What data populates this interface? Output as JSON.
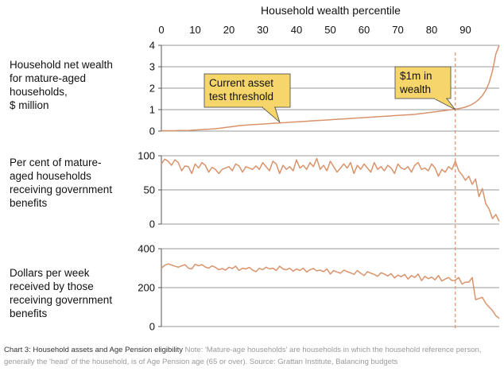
{
  "colors": {
    "line": "#d9936b",
    "grid": "#9a9a9a",
    "axis": "#555555",
    "callout_fill": "#f6d66a",
    "callout_border": "#555555",
    "threshold": "#d9936b"
  },
  "figure": {
    "top_axis_title": "Household wealth percentile",
    "x_ticks": [
      "0",
      "10",
      "20",
      "30",
      "40",
      "50",
      "60",
      "70",
      "80",
      "90"
    ],
    "panel_labels": [
      "Household net wealth\nfor mature-aged\nhouseholds,\n$ million",
      "Per cent of mature-\naged households\nreceiving government\nbenefits",
      "Dollars per week\nreceived by those\nreceiving government\nbenefits"
    ],
    "callouts": [
      "Current asset\ntest threshold",
      "$1m in\nwealth"
    ]
  },
  "caption": {
    "title": "Chart 3: Household assets and Age Pension eligibility",
    "note": " Note: 'Mature-age households' are households in which the household reference person, generally the 'head' of the household, is of Age Pension age (65 or over). Source: Grattan Institute, Balancing budgets"
  },
  "chart_data": [
    {
      "type": "line",
      "title": "Household net wealth for mature-aged households, $ million",
      "xlabel": "Household wealth percentile",
      "ylabel": "$ million",
      "xlim": [
        0,
        100
      ],
      "ylim": [
        0,
        4
      ],
      "y_ticks": [
        "0",
        "1",
        "2",
        "3",
        "4"
      ],
      "threshold_percentile": 87,
      "annotations": [
        {
          "text": "Current asset test threshold",
          "x": 35,
          "y": 0.42
        },
        {
          "text": "$1m in wealth",
          "x": 87,
          "y": 1.0
        }
      ],
      "x": [
        0,
        1,
        2,
        3,
        4,
        5,
        6,
        7,
        8,
        9,
        10,
        11,
        12,
        13,
        14,
        15,
        16,
        17,
        18,
        19,
        20,
        21,
        22,
        23,
        24,
        25,
        26,
        27,
        28,
        29,
        30,
        31,
        32,
        33,
        34,
        35,
        36,
        37,
        38,
        39,
        40,
        41,
        42,
        43,
        44,
        45,
        46,
        47,
        48,
        49,
        50,
        51,
        52,
        53,
        54,
        55,
        56,
        57,
        58,
        59,
        60,
        61,
        62,
        63,
        64,
        65,
        66,
        67,
        68,
        69,
        70,
        71,
        72,
        73,
        74,
        75,
        76,
        77,
        78,
        79,
        80,
        81,
        82,
        83,
        84,
        85,
        86,
        87,
        88,
        89,
        90,
        91,
        92,
        93,
        94,
        95,
        96,
        97,
        98,
        99,
        100
      ],
      "values": [
        0.02,
        0.02,
        0.02,
        0.02,
        0.02,
        0.03,
        0.03,
        0.03,
        0.03,
        0.04,
        0.05,
        0.06,
        0.07,
        0.08,
        0.09,
        0.1,
        0.11,
        0.13,
        0.15,
        0.17,
        0.19,
        0.21,
        0.23,
        0.25,
        0.27,
        0.28,
        0.29,
        0.3,
        0.31,
        0.32,
        0.33,
        0.34,
        0.35,
        0.36,
        0.37,
        0.38,
        0.39,
        0.4,
        0.41,
        0.42,
        0.43,
        0.44,
        0.45,
        0.46,
        0.47,
        0.48,
        0.49,
        0.5,
        0.51,
        0.52,
        0.53,
        0.54,
        0.55,
        0.56,
        0.57,
        0.58,
        0.59,
        0.6,
        0.61,
        0.62,
        0.63,
        0.64,
        0.65,
        0.66,
        0.67,
        0.68,
        0.69,
        0.7,
        0.71,
        0.72,
        0.73,
        0.74,
        0.75,
        0.76,
        0.77,
        0.78,
        0.8,
        0.82,
        0.84,
        0.86,
        0.88,
        0.9,
        0.92,
        0.94,
        0.96,
        0.98,
        1.0,
        1.02,
        1.05,
        1.08,
        1.12,
        1.18,
        1.25,
        1.35,
        1.48,
        1.65,
        1.9,
        2.25,
        2.8,
        3.6,
        4.0
      ]
    },
    {
      "type": "line",
      "title": "Per cent of mature-aged households receiving government benefits",
      "xlabel": "Household wealth percentile",
      "ylabel": "Per cent",
      "xlim": [
        0,
        100
      ],
      "ylim": [
        0,
        100
      ],
      "y_ticks": [
        "0",
        "50",
        "100"
      ],
      "x": [
        0,
        1,
        2,
        3,
        4,
        5,
        6,
        7,
        8,
        9,
        10,
        11,
        12,
        13,
        14,
        15,
        16,
        17,
        18,
        19,
        20,
        21,
        22,
        23,
        24,
        25,
        26,
        27,
        28,
        29,
        30,
        31,
        32,
        33,
        34,
        35,
        36,
        37,
        38,
        39,
        40,
        41,
        42,
        43,
        44,
        45,
        46,
        47,
        48,
        49,
        50,
        51,
        52,
        53,
        54,
        55,
        56,
        57,
        58,
        59,
        60,
        61,
        62,
        63,
        64,
        65,
        66,
        67,
        68,
        69,
        70,
        71,
        72,
        73,
        74,
        75,
        76,
        77,
        78,
        79,
        80,
        81,
        82,
        83,
        84,
        85,
        86,
        87,
        88,
        89,
        90,
        91,
        92,
        93,
        94,
        95,
        96,
        97,
        98,
        99,
        100
      ],
      "values": [
        88,
        95,
        92,
        86,
        94,
        90,
        78,
        85,
        84,
        74,
        88,
        82,
        90,
        86,
        76,
        83,
        80,
        74,
        80,
        82,
        84,
        78,
        88,
        85,
        76,
        84,
        82,
        80,
        85,
        80,
        90,
        84,
        78,
        92,
        88,
        74,
        86,
        80,
        84,
        78,
        94,
        82,
        86,
        80,
        90,
        84,
        96,
        80,
        86,
        78,
        92,
        84,
        76,
        82,
        88,
        82,
        90,
        74,
        86,
        80,
        88,
        82,
        76,
        90,
        80,
        84,
        78,
        86,
        82,
        74,
        88,
        82,
        80,
        84,
        76,
        86,
        90,
        80,
        82,
        78,
        88,
        82,
        70,
        80,
        76,
        84,
        80,
        92,
        78,
        72,
        64,
        70,
        58,
        66,
        40,
        52,
        30,
        22,
        8,
        14,
        4
      ]
    },
    {
      "type": "line",
      "title": "Dollars per week received by those receiving government benefits",
      "xlabel": "Household wealth percentile",
      "ylabel": "Dollars per week",
      "xlim": [
        0,
        100
      ],
      "ylim": [
        0,
        400
      ],
      "y_ticks": [
        "0",
        "200",
        "400"
      ],
      "x": [
        0,
        1,
        2,
        3,
        4,
        5,
        6,
        7,
        8,
        9,
        10,
        11,
        12,
        13,
        14,
        15,
        16,
        17,
        18,
        19,
        20,
        21,
        22,
        23,
        24,
        25,
        26,
        27,
        28,
        29,
        30,
        31,
        32,
        33,
        34,
        35,
        36,
        37,
        38,
        39,
        40,
        41,
        42,
        43,
        44,
        45,
        46,
        47,
        48,
        49,
        50,
        51,
        52,
        53,
        54,
        55,
        56,
        57,
        58,
        59,
        60,
        61,
        62,
        63,
        64,
        65,
        66,
        67,
        68,
        69,
        70,
        71,
        72,
        73,
        74,
        75,
        76,
        77,
        78,
        79,
        80,
        81,
        82,
        83,
        84,
        85,
        86,
        87,
        88,
        89,
        90,
        91,
        92,
        93,
        94,
        95,
        96,
        97,
        98,
        99,
        100
      ],
      "values": [
        300,
        315,
        322,
        316,
        310,
        305,
        312,
        318,
        300,
        296,
        320,
        312,
        318,
        306,
        300,
        312,
        304,
        292,
        298,
        290,
        305,
        298,
        310,
        288,
        300,
        296,
        304,
        290,
        282,
        300,
        292,
        305,
        296,
        300,
        288,
        310,
        296,
        292,
        300,
        284,
        296,
        288,
        300,
        280,
        292,
        298,
        286,
        290,
        282,
        296,
        270,
        288,
        280,
        274,
        290,
        282,
        276,
        268,
        288,
        274,
        262,
        282,
        274,
        268,
        258,
        276,
        270,
        260,
        272,
        250,
        264,
        256,
        268,
        244,
        262,
        252,
        270,
        236,
        258,
        246,
        254,
        240,
        262,
        234,
        244,
        252,
        236,
        238,
        252,
        218,
        228,
        228,
        252,
        138,
        144,
        150,
        120,
        100,
        82,
        56,
        42
      ]
    }
  ]
}
